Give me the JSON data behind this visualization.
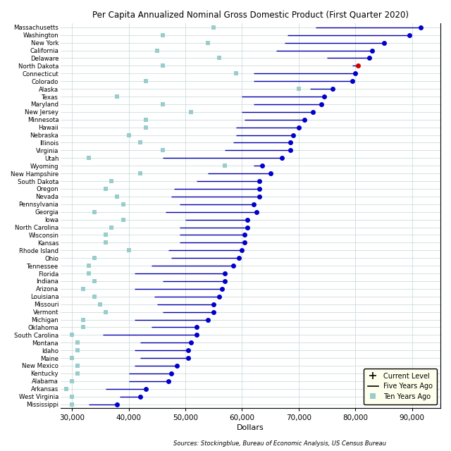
{
  "title": "Per Capita Annualized Nominal Gross Domestic Product (First Quarter 2020)",
  "xlabel": "Dollars",
  "source": "Sources: Stockingblue, Bureau of Economic Analysis, US Census Bureau",
  "states": [
    "Massachusetts",
    "Washington",
    "New York",
    "California",
    "Delaware",
    "North Dakota",
    "Connecticut",
    "Colorado",
    "Alaska",
    "Texas",
    "Maryland",
    "New Jersey",
    "Minnesota",
    "Hawaii",
    "Nebraska",
    "Illinois",
    "Virginia",
    "Utah",
    "Wyoming",
    "New Hampshire",
    "South Dakota",
    "Oregon",
    "Nevada",
    "Pennsylvania",
    "Georgia",
    "Iowa",
    "North Carolina",
    "Wisconsin",
    "Kansas",
    "Rhode Island",
    "Ohio",
    "Tennessee",
    "Florida",
    "Indiana",
    "Arizona",
    "Louisiana",
    "Missouri",
    "Vermont",
    "Michigan",
    "Oklahoma",
    "South Carolina",
    "Montana",
    "Idaho",
    "Maine",
    "New Mexico",
    "Kentucky",
    "Alabama",
    "Arkansas",
    "West Virginia",
    "Mississippi"
  ],
  "current": [
    91500,
    89500,
    85000,
    83000,
    82500,
    80500,
    80000,
    79500,
    76000,
    74500,
    74000,
    72500,
    71000,
    70000,
    69000,
    68500,
    68500,
    67000,
    63500,
    65000,
    63000,
    63000,
    63000,
    62000,
    62500,
    61000,
    61000,
    60500,
    60500,
    60000,
    59500,
    58500,
    57000,
    57000,
    56500,
    56000,
    55000,
    55000,
    54000,
    52000,
    52000,
    51000,
    50500,
    50500,
    48500,
    47500,
    47000,
    43000,
    42000,
    38000
  ],
  "five_years": [
    73000,
    68000,
    67500,
    66000,
    75000,
    79500,
    62000,
    62000,
    72000,
    60000,
    62000,
    60000,
    60500,
    59000,
    59000,
    58500,
    57000,
    46000,
    62000,
    54000,
    52000,
    48000,
    47500,
    49000,
    46500,
    50000,
    49000,
    49000,
    49000,
    47000,
    47500,
    44000,
    41000,
    46000,
    41000,
    44500,
    45000,
    46000,
    41000,
    44000,
    35500,
    42000,
    41000,
    42000,
    41000,
    40000,
    40000,
    36000,
    38500,
    33000
  ],
  "ten_years": [
    55000,
    46000,
    54000,
    45000,
    56000,
    46000,
    59000,
    43000,
    70000,
    38000,
    46000,
    51000,
    43000,
    43000,
    40000,
    42000,
    46000,
    33000,
    57000,
    42000,
    37000,
    36000,
    38000,
    39000,
    34000,
    39000,
    37000,
    36000,
    36000,
    40000,
    34000,
    33000,
    33000,
    34000,
    32000,
    34000,
    35000,
    36000,
    32000,
    32000,
    30000,
    31000,
    31000,
    30000,
    31000,
    31000,
    30000,
    29000,
    30000,
    30000
  ],
  "bg_color": "#ffffff",
  "plot_bg_color": "#ffffff",
  "grid_color": "#ccdddd",
  "line_color": "#0000aa",
  "dot_color": "#0000cc",
  "ten_year_color": "#99cccc",
  "nd_dot_color": "#cc0000",
  "legend_bg": "#ffffee"
}
